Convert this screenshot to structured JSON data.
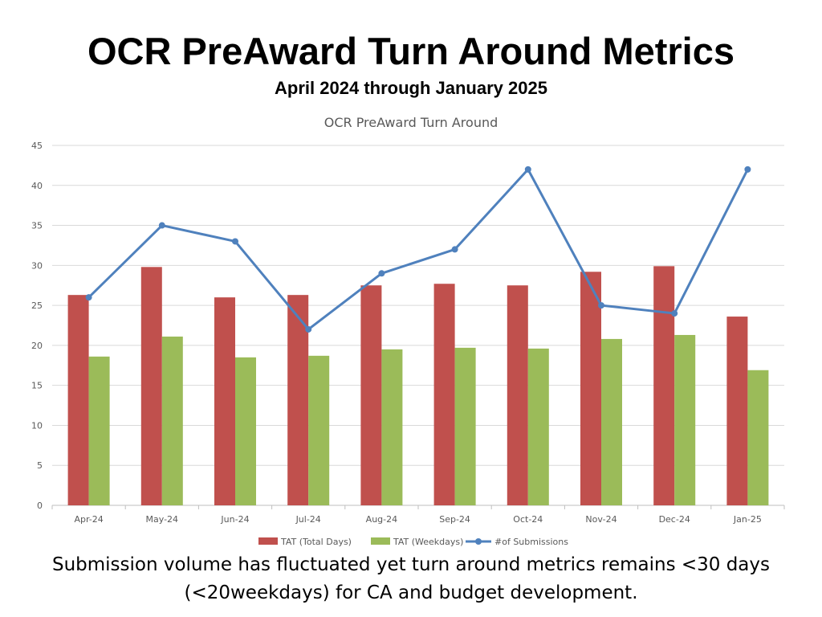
{
  "slide": {
    "title": "OCR PreAward Turn Around Metrics",
    "subtitle": "April 2024 through January 2025",
    "caption_line1": "Submission volume has fluctuated yet turn around metrics remains <30 days",
    "caption_line2": "(<20weekdays) for CA and budget development."
  },
  "chart_data": {
    "type": "bar",
    "title": "OCR PreAward Turn Around",
    "categories": [
      "Apr-24",
      "May-24",
      "Jun-24",
      "Jul-24",
      "Aug-24",
      "Sep-24",
      "Oct-24",
      "Nov-24",
      "Dec-24",
      "Jan-25"
    ],
    "ylim": [
      0,
      45
    ],
    "yticks": [
      0,
      5,
      10,
      15,
      20,
      25,
      30,
      35,
      40,
      45
    ],
    "grid": true,
    "legend_position": "bottom",
    "series": [
      {
        "name": "TAT (Total Days)",
        "type": "bar",
        "color": "#c0504d",
        "values": [
          26.3,
          29.8,
          26.0,
          26.3,
          27.5,
          27.7,
          27.5,
          29.2,
          29.9,
          23.6
        ]
      },
      {
        "name": "TAT (Weekdays)",
        "type": "bar",
        "color": "#9bbb59",
        "values": [
          18.6,
          21.1,
          18.5,
          18.7,
          19.5,
          19.7,
          19.6,
          20.8,
          21.3,
          16.9
        ]
      },
      {
        "name": "#of Submissions",
        "type": "line",
        "color": "#4f81bd",
        "values": [
          26,
          35,
          33,
          22,
          29,
          32,
          42,
          25,
          24,
          42
        ]
      }
    ]
  }
}
